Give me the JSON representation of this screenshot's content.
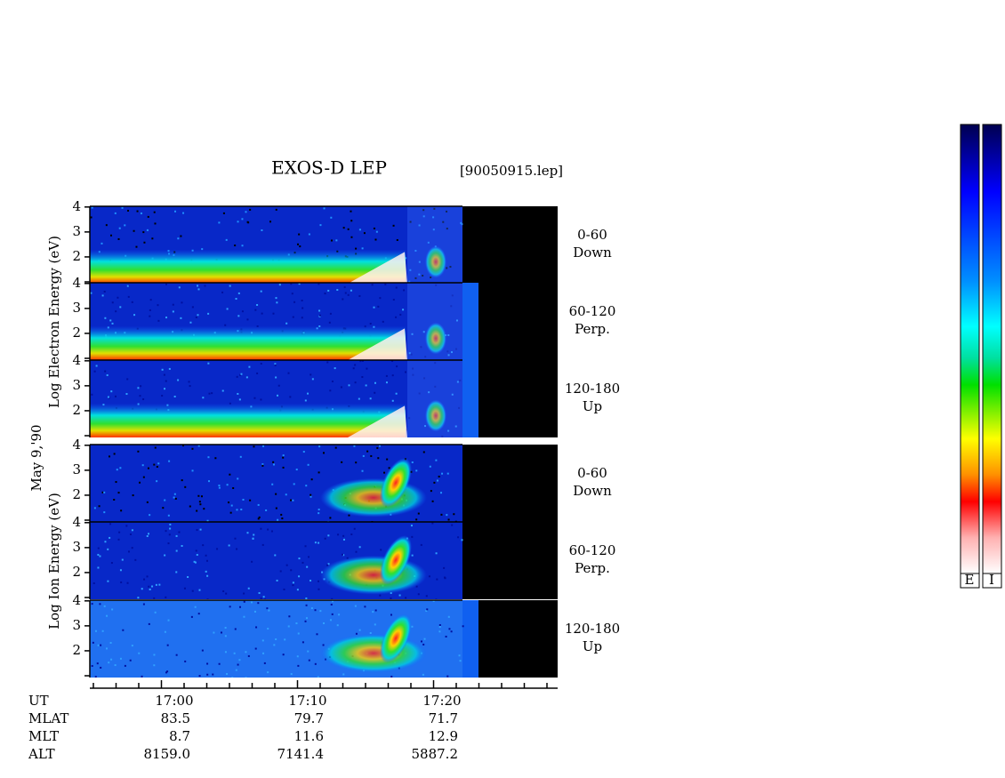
{
  "chart_data": {
    "type": "spectrogram",
    "title": "EXOS-D LEP",
    "file": "[90050915.lep]",
    "date": "May 9,'90",
    "ylim": [
      1,
      4.1
    ],
    "yticks": [
      2,
      3,
      4
    ],
    "groups": [
      {
        "label": "Log Electron Energy (eV)",
        "species": "electron",
        "panels": [
          {
            "angle": "0-60",
            "direction": "Down"
          },
          {
            "angle": "60-120",
            "direction": "Perp."
          },
          {
            "angle": "120-180",
            "direction": "Up"
          }
        ]
      },
      {
        "label": "Log Ion Energy (eV)",
        "species": "ion",
        "panels": [
          {
            "angle": "0-60",
            "direction": "Down"
          },
          {
            "angle": "60-120",
            "direction": "Perp."
          },
          {
            "angle": "120-180",
            "direction": "Up"
          }
        ]
      }
    ],
    "footer": [
      {
        "name": "UT",
        "values": [
          "17:00",
          "17:10",
          "17:20"
        ]
      },
      {
        "name": "MLAT",
        "values": [
          "83.5",
          "79.7",
          "71.7"
        ]
      },
      {
        "name": "MLT",
        "values": [
          "8.7",
          "11.6",
          "12.9"
        ]
      },
      {
        "name": "ALT",
        "values": [
          "8159.0",
          "7141.4",
          "5887.2"
        ]
      }
    ],
    "colorbar_labels": [
      "E",
      "I"
    ]
  }
}
